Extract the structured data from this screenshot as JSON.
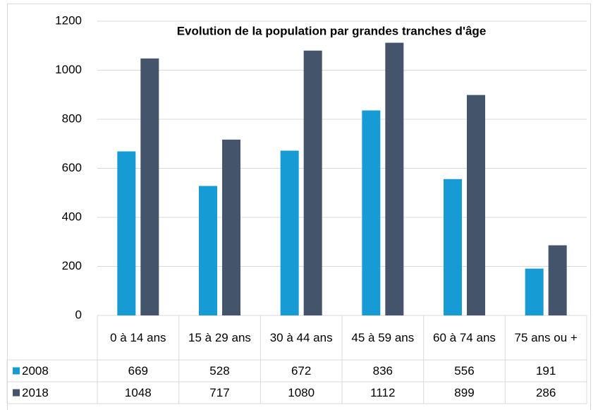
{
  "chart_data": {
    "type": "bar",
    "title": "Evolution de la population par grandes tranches d'âge",
    "categories": [
      "0 à 14 ans",
      "15 à 29 ans",
      "30 à 44 ans",
      "45 à 59 ans",
      "60 à 74 ans",
      "75 ans ou +"
    ],
    "series": [
      {
        "name": "2008",
        "color": "#169bd5",
        "values": [
          669,
          528,
          672,
          836,
          556,
          191
        ]
      },
      {
        "name": "2018",
        "color": "#44546a",
        "values": [
          1048,
          717,
          1080,
          1112,
          899,
          286
        ]
      }
    ],
    "ylim": [
      0,
      1200
    ],
    "yticks": [
      0,
      200,
      400,
      600,
      800,
      1000,
      1200
    ],
    "grid": true,
    "data_table": true
  }
}
